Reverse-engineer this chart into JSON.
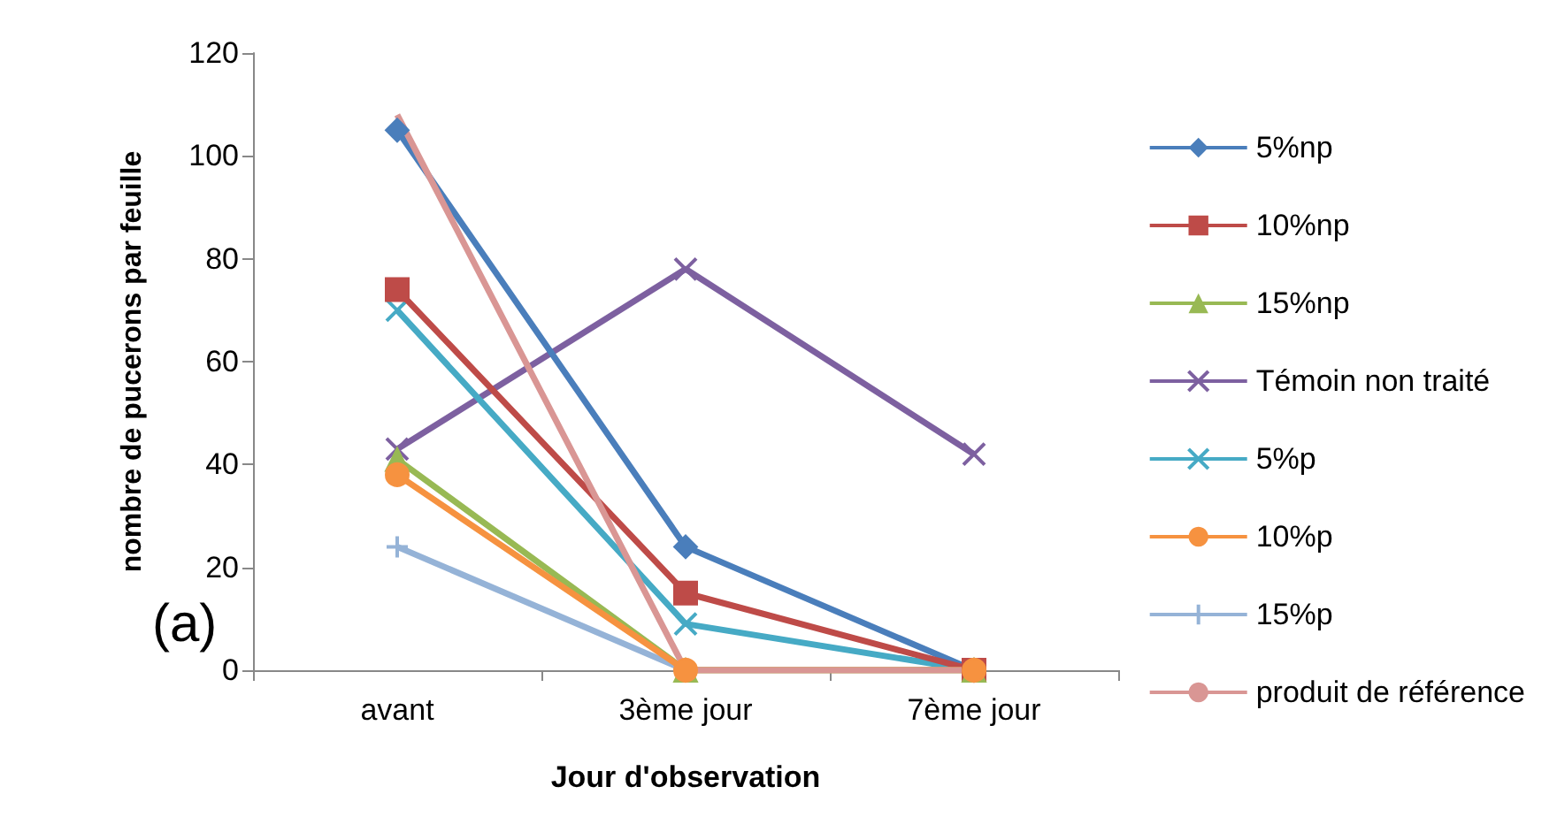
{
  "chart_data": {
    "type": "line",
    "xlabel": "Jour d'observation",
    "ylabel": "nombre de pucerons par feuille",
    "categories": [
      "avant",
      "3ème jour",
      "7ème jour"
    ],
    "series": [
      {
        "name": "5%np",
        "color": "#4a7ebb",
        "marker": "diamond",
        "values": [
          105,
          24,
          0
        ]
      },
      {
        "name": "10%np",
        "color": "#be4b48",
        "marker": "square",
        "values": [
          74,
          15,
          0
        ]
      },
      {
        "name": "15%np",
        "color": "#98b954",
        "marker": "triangle",
        "values": [
          41,
          0,
          0
        ]
      },
      {
        "name": "Témoin non traité",
        "color": "#7d60a0",
        "marker": "cross",
        "values": [
          43,
          78,
          42
        ]
      },
      {
        "name": "5%p",
        "color": "#46aac5",
        "marker": "cross",
        "values": [
          70,
          9,
          0
        ]
      },
      {
        "name": "10%p",
        "color": "#f69240",
        "marker": "circle",
        "values": [
          38,
          0,
          0
        ]
      },
      {
        "name": "15%p",
        "color": "#95b3d7",
        "marker": "plus",
        "values": [
          24,
          0,
          0
        ]
      },
      {
        "name": "produit de référence",
        "color": "#d99694",
        "marker": "none",
        "values": [
          108,
          0,
          0
        ]
      }
    ],
    "ylim": [
      0,
      120
    ],
    "yticks": [
      0,
      20,
      40,
      60,
      80,
      100,
      120
    ],
    "grid": false,
    "legend": "right",
    "annotations": [
      "(a)"
    ]
  }
}
